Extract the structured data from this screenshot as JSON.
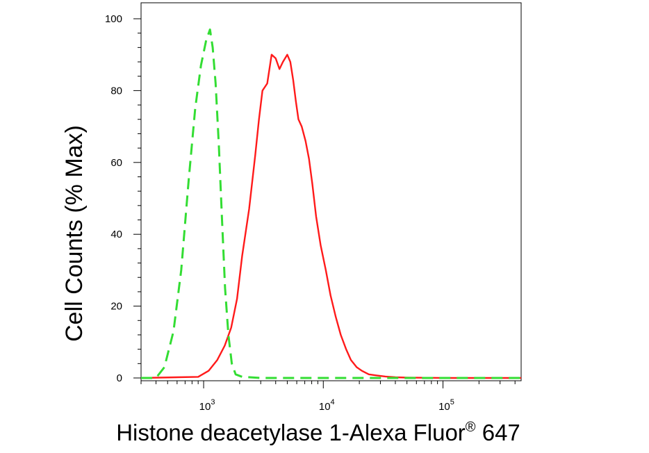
{
  "chart_data": {
    "type": "line",
    "xlabel": "Histone deacetylase 1-Alexa Fluor",
    "xlabel_superscript": "®",
    "xlabel_suffix": " 647",
    "ylabel": "Cell Counts (% Max)",
    "x_scale": "log",
    "xlim": [
      300,
      450000
    ],
    "ylim": [
      0,
      100
    ],
    "y_ticks": [
      0,
      20,
      40,
      60,
      80,
      100
    ],
    "x_ticks": [
      {
        "value": 1000,
        "base": "10",
        "exp": "3"
      },
      {
        "value": 10000,
        "base": "10",
        "exp": "4"
      },
      {
        "value": 100000,
        "base": "10",
        "exp": "5"
      }
    ],
    "grid": false,
    "series": [
      {
        "color": "#ff1a1a",
        "style": "solid",
        "x": [
          300,
          900,
          1100,
          1300,
          1500,
          1700,
          1900,
          2100,
          2400,
          2700,
          2900,
          3100,
          3400,
          3700,
          4000,
          4300,
          4600,
          5000,
          5300,
          5600,
          5900,
          6200,
          6600,
          7100,
          7600,
          8100,
          8700,
          9500,
          10500,
          11500,
          12700,
          14000,
          15500,
          17000,
          19000,
          21000,
          24000,
          28000,
          33000,
          40000,
          50000,
          70000,
          120000,
          200000,
          450000
        ],
        "values": [
          0,
          0.3,
          2,
          5,
          9,
          14,
          22,
          34,
          47,
          62,
          72,
          80,
          82,
          90,
          89,
          86,
          88,
          90,
          88,
          83,
          77,
          72,
          70,
          66,
          61,
          54,
          45,
          37,
          30,
          23,
          17,
          12,
          8,
          5,
          3,
          2,
          1,
          0.7,
          0.4,
          0.2,
          0.1,
          0.05,
          0,
          0,
          0
        ]
      },
      {
        "color": "#33dd33",
        "style": "dashed",
        "x": [
          300,
          400,
          470,
          560,
          650,
          750,
          850,
          950,
          1050,
          1130,
          1190,
          1260,
          1340,
          1420,
          1510,
          1610,
          1720,
          1850,
          2100,
          3000,
          10000,
          50000,
          450000
        ],
        "values": [
          0,
          0,
          3,
          13,
          30,
          55,
          75,
          87,
          94,
          97,
          92,
          82,
          65,
          45,
          25,
          12,
          4,
          1,
          0.3,
          0,
          0,
          0,
          0
        ]
      }
    ]
  }
}
